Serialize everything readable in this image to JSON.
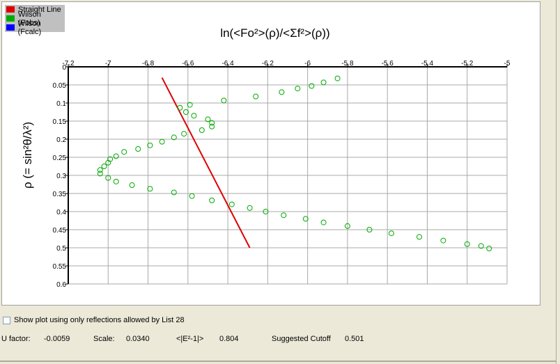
{
  "legend": [
    {
      "label": "Straight Line",
      "color": "#dd0000"
    },
    {
      "label": "Wilson (Fobs)",
      "color": "#00aa00"
    },
    {
      "label": "Wilson (Fcalc)",
      "color": "#0000ff"
    }
  ],
  "checkbox_label": "Show plot using only reflections allowed by List 28",
  "stats": {
    "u_factor_label": "U factor:",
    "u_factor_value": "-0.0059",
    "scale_label": "Scale:",
    "scale_value": "0.0340",
    "e2_label": "<|E²-1|>",
    "e2_value": "0.804",
    "cutoff_label": "Suggested Cutoff",
    "cutoff_value": "0.501"
  },
  "chart_data": {
    "type": "scatter",
    "title": "ln(<Fo²>(ρ)/<Σf²>(ρ))",
    "xlabel": "",
    "ylabel": "ρ (= sin²θ/λ²)",
    "xlim": [
      -7.2,
      -5
    ],
    "ylim": [
      0,
      0.6
    ],
    "y_inverted": true,
    "x_ticks": [
      "-7.2",
      "-7",
      "-6.8",
      "-6.6",
      "-6.4",
      "-6.2",
      "-6",
      "-5.8",
      "-5.6",
      "-5.4",
      "-5.2",
      "-5"
    ],
    "x_tick_values": [
      -7.2,
      -7,
      -6.8,
      -6.6,
      -6.4,
      -6.2,
      -6,
      -5.8,
      -5.6,
      -5.4,
      -5.2,
      -5
    ],
    "y_ticks": [
      "0",
      "0.05",
      "0.1",
      "0.15",
      "0.2",
      "0.25",
      "0.3",
      "0.35",
      "0.4",
      "0.45",
      "0.5",
      "0.55",
      "0.6"
    ],
    "y_tick_values": [
      0,
      0.05,
      0.1,
      0.15,
      0.2,
      0.25,
      0.3,
      0.35,
      0.4,
      0.45,
      0.5,
      0.55,
      0.6
    ],
    "grid": true,
    "legend_position": "top-left",
    "series": [
      {
        "name": "Straight Line",
        "kind": "line",
        "color": "#dd0000",
        "x": [
          -6.73,
          -6.29
        ],
        "y": [
          0.03,
          0.5
        ]
      },
      {
        "name": "Wilson (Fobs)",
        "kind": "scatter",
        "color": "#00aa00",
        "x": [
          -5.85,
          -5.92,
          -5.98,
          -6.05,
          -6.13,
          -6.26,
          -6.42,
          -6.48,
          -6.48,
          -6.5,
          -6.53,
          -6.57,
          -6.59,
          -6.61,
          -6.62,
          -6.64,
          -6.67,
          -6.73,
          -6.79,
          -6.85,
          -6.92,
          -6.96,
          -6.99,
          -7.0,
          -7.02,
          -7.04,
          -7.04,
          -7.0,
          -6.96,
          -6.88,
          -6.79,
          -6.67,
          -6.58,
          -6.48,
          -6.38,
          -6.29,
          -6.21,
          -6.12,
          -6.01,
          -5.92,
          -5.8,
          -5.69,
          -5.58,
          -5.44,
          -5.32,
          -5.2,
          -5.13,
          -5.09
        ],
        "y": [
          0.032,
          0.043,
          0.053,
          0.06,
          0.07,
          0.082,
          0.093,
          0.165,
          0.155,
          0.145,
          0.175,
          0.135,
          0.105,
          0.125,
          0.185,
          0.113,
          0.195,
          0.207,
          0.217,
          0.227,
          0.235,
          0.247,
          0.255,
          0.265,
          0.275,
          0.285,
          0.295,
          0.307,
          0.317,
          0.327,
          0.337,
          0.347,
          0.357,
          0.369,
          0.38,
          0.39,
          0.4,
          0.41,
          0.42,
          0.43,
          0.44,
          0.45,
          0.46,
          0.47,
          0.48,
          0.49,
          0.495,
          0.502
        ]
      },
      {
        "name": "Wilson (Fcalc)",
        "kind": "scatter",
        "color": "#0000ff",
        "x": [],
        "y": []
      }
    ]
  }
}
